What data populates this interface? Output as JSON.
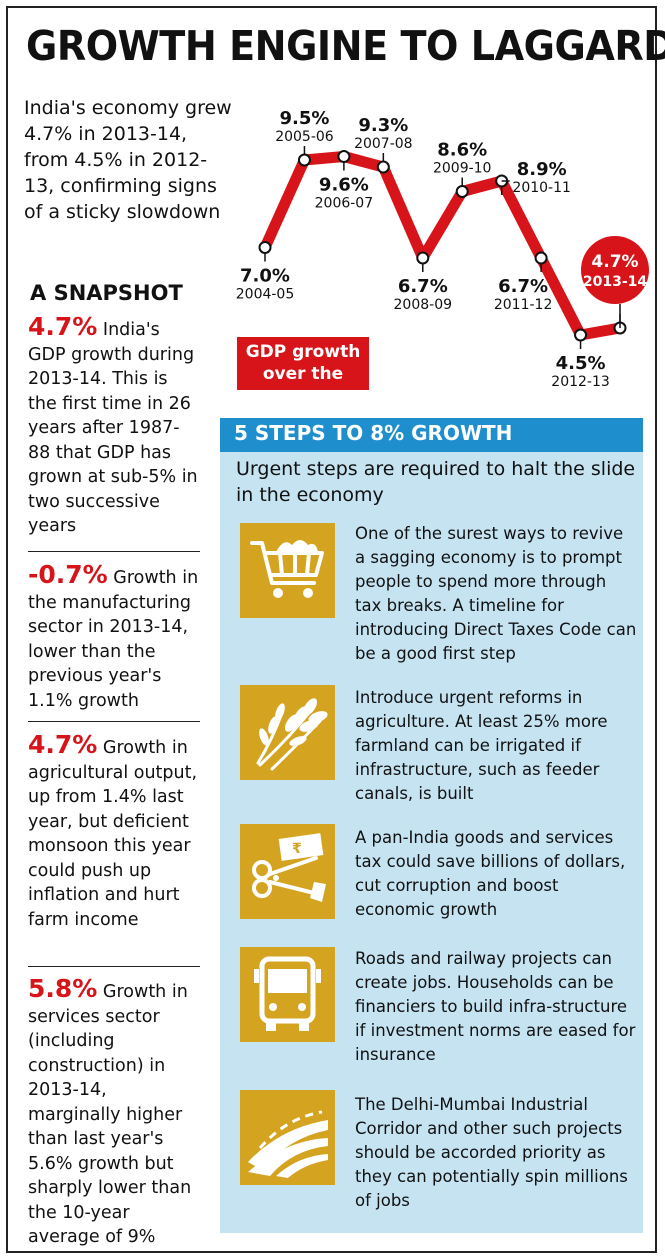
{
  "title": "GROWTH ENGINE TO LAGGARD",
  "intro": "India's economy grew 4.7% in 2013-14, from 4.5% in 2012-13, confirming signs of a sticky slowdown",
  "snapshot": {
    "heading": "A SNAPSHOT",
    "items": [
      {
        "value": "4.7%",
        "text": "India's GDP growth during 2013-14. This is the first time in 26 years after 1987-88 that GDP has grown at sub-5% in two successive years"
      },
      {
        "value": "-0.7%",
        "text": "Growth in the manufacturing sector in 2013-14, lower than the previous year's 1.1% growth"
      },
      {
        "value": "4.7%",
        "text": "Growth in agricultural output, up from 1.4% last year, but deficient monsoon this year could push up inflation and hurt farm income"
      },
      {
        "value": "5.8%",
        "text": "Growth in services sector (including construction) in 2013-14, marginally higher than last year's 5.6% growth but sharply lower than the 10-year average of 9%"
      }
    ]
  },
  "chart_data": {
    "type": "line",
    "title": "GDP growth over the years",
    "categories": [
      "2004-05",
      "2005-06",
      "2006-07",
      "2007-08",
      "2008-09",
      "2009-10",
      "2010-11",
      "2011-12",
      "2012-13",
      "2013-14"
    ],
    "series": [
      {
        "values": [
          7.0,
          9.5,
          9.6,
          9.3,
          6.7,
          8.6,
          8.9,
          6.7,
          4.5,
          4.7
        ]
      }
    ],
    "value_labels": [
      "7.0%",
      "9.5%",
      "9.6%",
      "9.3%",
      "6.7%",
      "8.6%",
      "8.9%",
      "6.7%",
      "4.5%",
      "4.7%"
    ],
    "ylim": [
      3.5,
      10.5
    ],
    "line_color": "#d7141a",
    "highlight": "2013-14",
    "grid": false,
    "legend": "none"
  },
  "chart_badge": {
    "line1": "GDP growth",
    "line2": "over the years"
  },
  "steps": {
    "title": "5 STEPS TO 8% GROWTH",
    "subtitle": "Urgent steps are required to halt the slide in the economy",
    "items": [
      {
        "icon": "shopping-cart-icon",
        "text": "One of the surest ways to revive a sagging economy is to prompt people to spend more through tax breaks. A timeline for introducing Direct Taxes Code can be a good first step"
      },
      {
        "icon": "wheat-icon",
        "text": "Introduce urgent reforms in agriculture. At least 25% more farmland can be irrigated if infrastructure, such as feeder canals, is built"
      },
      {
        "icon": "scissors-rupee-note-icon",
        "text": "A pan-India goods and services tax could save billions of dollars, cut corruption and boost economic growth"
      },
      {
        "icon": "bus-icon",
        "text": "Roads and railway projects can create jobs. Households can be financiers to build infra-structure if investment norms are eased for insurance"
      },
      {
        "icon": "highway-icon",
        "text": "The Delhi-Mumbai Industrial Corridor and other such projects should be accorded priority as they can potentially spin millions of jobs"
      }
    ]
  },
  "colors": {
    "accent_red": "#d7141a",
    "panel_blue": "#c6e3f2",
    "header_blue": "#1f8ecd",
    "icon_gold": "#d4a421"
  }
}
